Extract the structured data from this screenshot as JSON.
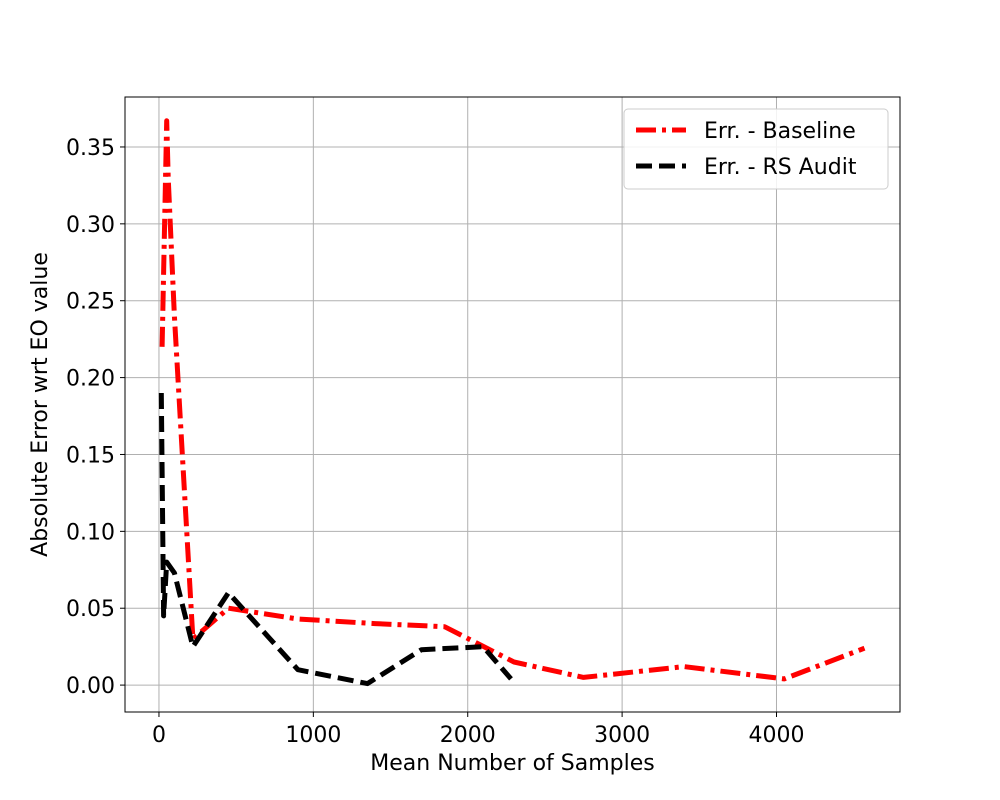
{
  "chart_data": {
    "type": "line",
    "title": "",
    "xlabel": "Mean Number of Samples",
    "ylabel": "Absolute Error wrt EO value",
    "xlim": [
      -220,
      4800
    ],
    "ylim": [
      -0.0175,
      0.3825
    ],
    "xticks": [
      0,
      1000,
      2000,
      3000,
      4000
    ],
    "xtick_labels": [
      "0",
      "1000",
      "2000",
      "3000",
      "4000"
    ],
    "yticks": [
      0.0,
      0.05,
      0.1,
      0.15,
      0.2,
      0.25,
      0.3,
      0.35
    ],
    "ytick_labels": [
      "0.00",
      "0.05",
      "0.10",
      "0.15",
      "0.20",
      "0.25",
      "0.30",
      "0.35"
    ],
    "grid": true,
    "legend_position": "top-right",
    "series": [
      {
        "name": "Err. - Baseline",
        "color": "#ff0000",
        "style": "dashdot",
        "x": [
          20,
          50,
          60,
          100,
          220,
          450,
          900,
          1400,
          1850,
          2300,
          2750,
          3400,
          4050,
          4570
        ],
        "y": [
          0.22,
          0.367,
          0.33,
          0.24,
          0.03,
          0.05,
          0.043,
          0.04,
          0.038,
          0.015,
          0.005,
          0.012,
          0.004,
          0.024
        ]
      },
      {
        "name": "Err. - RS Audit",
        "color": "#000000",
        "style": "dashed",
        "x": [
          15,
          30,
          50,
          100,
          220,
          450,
          900,
          1350,
          1700,
          2100,
          2280
        ],
        "y": [
          0.19,
          0.045,
          0.08,
          0.073,
          0.025,
          0.06,
          0.01,
          0.001,
          0.023,
          0.025,
          0.004
        ]
      }
    ]
  }
}
